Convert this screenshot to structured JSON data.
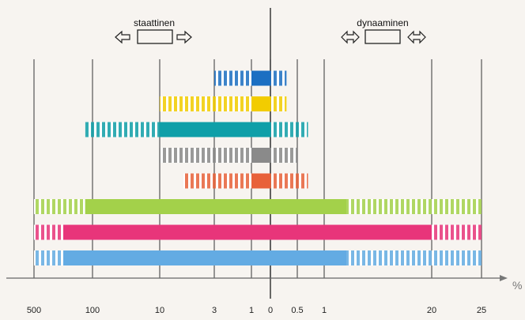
{
  "chart_data": {
    "type": "bar",
    "x_tick_labels": [
      "500",
      "100",
      "10",
      "3",
      "1",
      "0",
      "0.5",
      "1",
      "20",
      "25"
    ],
    "x_unit": "%",
    "legend": [
      {
        "label": "staattinen",
        "direction": "one-way"
      },
      {
        "label": "dynaaminen",
        "direction": "two-way"
      }
    ],
    "series": [
      {
        "color": "#1b6fc2",
        "static_solid": [
          1,
          0
        ],
        "static_hatched": [
          3,
          1
        ],
        "dynamic_solid": [],
        "dynamic_hatched": [
          0,
          0.3
        ]
      },
      {
        "color": "#f2cc00",
        "static_solid": [
          1,
          0
        ],
        "static_hatched": [
          10,
          1
        ],
        "dynamic_solid": [],
        "dynamic_hatched": [
          0,
          0.3
        ]
      },
      {
        "color": "#0f9fa8",
        "static_solid": [
          10,
          0
        ],
        "static_hatched": [
          150,
          10
        ],
        "dynamic_solid": [],
        "dynamic_hatched": [
          0,
          0.7
        ]
      },
      {
        "color": "#8a8a8a",
        "static_solid": [
          1,
          0
        ],
        "static_hatched": [
          10,
          1
        ],
        "dynamic_solid": [],
        "dynamic_hatched": [
          0,
          0.5
        ]
      },
      {
        "color": "#e8613a",
        "static_solid": [
          1,
          0
        ],
        "static_hatched": [
          7,
          1
        ],
        "dynamic_solid": [],
        "dynamic_hatched": [
          0,
          0.7
        ]
      },
      {
        "color": "#a3d14a",
        "static_solid": [
          150,
          0
        ],
        "static_hatched": [
          500,
          150
        ],
        "dynamic_solid": [
          0,
          5
        ],
        "dynamic_hatched": [
          5,
          25
        ]
      },
      {
        "color": "#e8357a",
        "static_solid": [
          300,
          0
        ],
        "static_hatched": [
          500,
          300
        ],
        "dynamic_solid": [
          0,
          20
        ],
        "dynamic_hatched": [
          20,
          25
        ]
      },
      {
        "color": "#63abe3",
        "static_solid": [
          300,
          0
        ],
        "static_hatched": [
          500,
          300
        ],
        "dynamic_solid": [
          0,
          5
        ],
        "dynamic_hatched": [
          5,
          25
        ]
      }
    ]
  }
}
